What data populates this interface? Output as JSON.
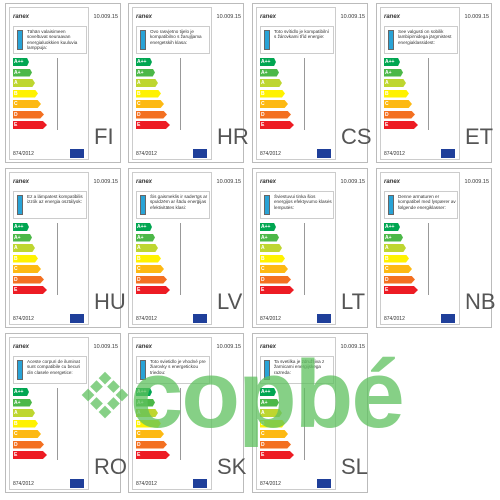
{
  "brand": "ranex",
  "model": "10.009.15",
  "regulation": "874/2012",
  "classes": [
    "A++",
    "A+",
    "A",
    "B",
    "C",
    "D",
    "E"
  ],
  "cards": [
    {
      "code": "FI",
      "text": "Tähän valaisimeen soveltuvat seuraavan energialuokkien kuuluvia lamppuja:"
    },
    {
      "code": "HR",
      "text": "Ovo rasvjetno tijelo je kompatibilno s žarujljama energetskih klasa:"
    },
    {
      "code": "CS",
      "text": "Toto svítidlo je kompatibilní s žárovkami tříd energie:"
    },
    {
      "code": "ET",
      "text": "See valgusti on sobilik lambipirnidega järgmistest energiaklassidest:"
    },
    {
      "code": "HU",
      "text": "Ez a lámpatest kompatibilis izzók az energia osztályok:"
    },
    {
      "code": "LV",
      "text": "Šis gaismeklis ir saderīgs ar spuldzēm ar šādu enerģijas efektivitātes klasi:"
    },
    {
      "code": "LT",
      "text": "Šviestuvui tinka šios energijos efektyvumo klasės lemputės:"
    },
    {
      "code": "NB",
      "text": "Denne armaturen er kompatibel med lyspærer av følgende energiklasser:"
    },
    {
      "code": "RO",
      "text": "Aceste corpuri de iluminat sunt compatibile cu becuri din clasele energetice:"
    },
    {
      "code": "SK",
      "text": "Toto svietidlo je vhodné pre žiarovky s energetickou triedou:"
    },
    {
      "code": "SL",
      "text": "Ta svetilka je združljiva z žarnicami energijskega razreda:"
    }
  ],
  "watermark": "copbé"
}
